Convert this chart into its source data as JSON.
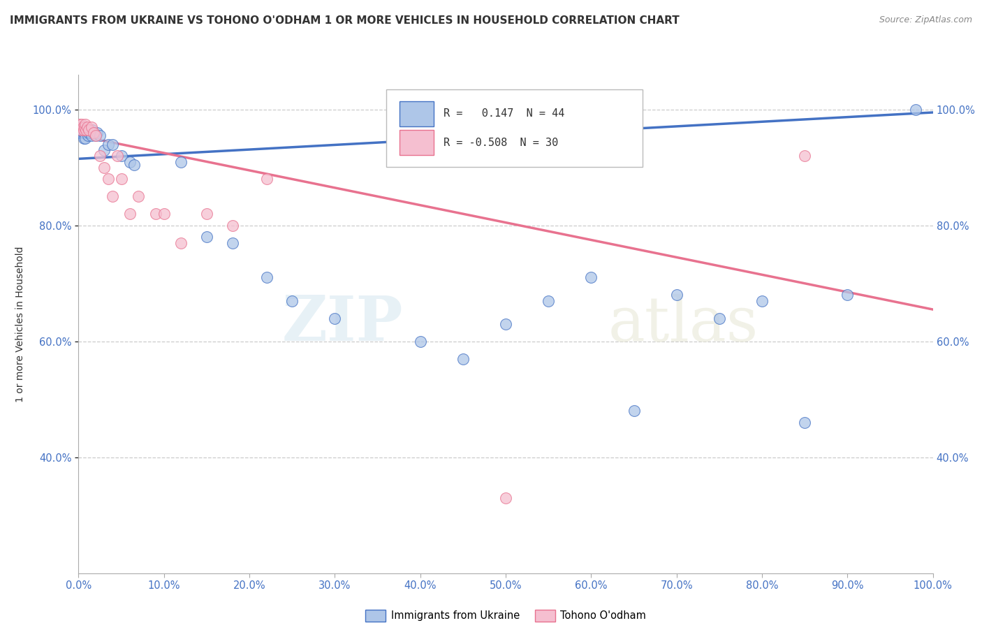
{
  "title": "IMMIGRANTS FROM UKRAINE VS TOHONO O'ODHAM 1 OR MORE VEHICLES IN HOUSEHOLD CORRELATION CHART",
  "source": "Source: ZipAtlas.com",
  "ylabel": "1 or more Vehicles in Household",
  "legend_label1": "Immigrants from Ukraine",
  "legend_label2": "Tohono O'odham",
  "R_ukraine": 0.147,
  "N_ukraine": 44,
  "R_tohono": -0.508,
  "N_tohono": 30,
  "ukraine_color": "#aec6e8",
  "ukraine_color_dark": "#4472c4",
  "tohono_color": "#f5bfd0",
  "tohono_color_dark": "#e8728f",
  "ukraine_scatter_x": [
    0.001,
    0.002,
    0.003,
    0.004,
    0.005,
    0.006,
    0.007,
    0.008,
    0.009,
    0.01,
    0.011,
    0.012,
    0.013,
    0.014,
    0.015,
    0.016,
    0.018,
    0.02,
    0.022,
    0.025,
    0.03,
    0.035,
    0.04,
    0.05,
    0.06,
    0.065,
    0.12,
    0.15,
    0.18,
    0.22,
    0.25,
    0.3,
    0.4,
    0.45,
    0.5,
    0.55,
    0.6,
    0.65,
    0.7,
    0.75,
    0.8,
    0.85,
    0.9,
    0.98
  ],
  "ukraine_scatter_y": [
    0.96,
    0.97,
    0.96,
    0.97,
    0.96,
    0.95,
    0.96,
    0.95,
    0.965,
    0.96,
    0.955,
    0.96,
    0.965,
    0.96,
    0.955,
    0.965,
    0.96,
    0.955,
    0.96,
    0.955,
    0.93,
    0.94,
    0.94,
    0.92,
    0.91,
    0.905,
    0.91,
    0.78,
    0.77,
    0.71,
    0.67,
    0.64,
    0.6,
    0.57,
    0.63,
    0.67,
    0.71,
    0.48,
    0.68,
    0.64,
    0.67,
    0.46,
    0.68,
    1.0
  ],
  "tohono_scatter_x": [
    0.001,
    0.002,
    0.003,
    0.004,
    0.005,
    0.006,
    0.007,
    0.008,
    0.009,
    0.01,
    0.012,
    0.015,
    0.018,
    0.02,
    0.025,
    0.03,
    0.035,
    0.04,
    0.045,
    0.05,
    0.06,
    0.07,
    0.09,
    0.1,
    0.12,
    0.15,
    0.18,
    0.22,
    0.5,
    0.85
  ],
  "tohono_scatter_y": [
    0.975,
    0.97,
    0.965,
    0.975,
    0.97,
    0.965,
    0.97,
    0.975,
    0.965,
    0.97,
    0.965,
    0.97,
    0.96,
    0.955,
    0.92,
    0.9,
    0.88,
    0.85,
    0.92,
    0.88,
    0.82,
    0.85,
    0.82,
    0.82,
    0.77,
    0.82,
    0.8,
    0.88,
    0.33,
    0.92
  ],
  "ukraine_line_x": [
    0.0,
    1.0
  ],
  "ukraine_line_y": [
    0.915,
    0.995
  ],
  "tohono_line_x": [
    0.0,
    1.0
  ],
  "tohono_line_y": [
    0.955,
    0.655
  ],
  "watermark_zip": "ZIP",
  "watermark_atlas": "atlas",
  "xlim": [
    0.0,
    1.0
  ],
  "ylim": [
    0.2,
    1.06
  ],
  "bg_color": "#ffffff",
  "grid_color": "#cccccc",
  "title_fontsize": 11,
  "marker_size": 130,
  "yticks_right": [
    0.4,
    0.6,
    0.8,
    1.0
  ],
  "xticks": [
    0.0,
    0.1,
    0.2,
    0.3,
    0.4,
    0.5,
    0.6,
    0.7,
    0.8,
    0.9,
    1.0
  ]
}
